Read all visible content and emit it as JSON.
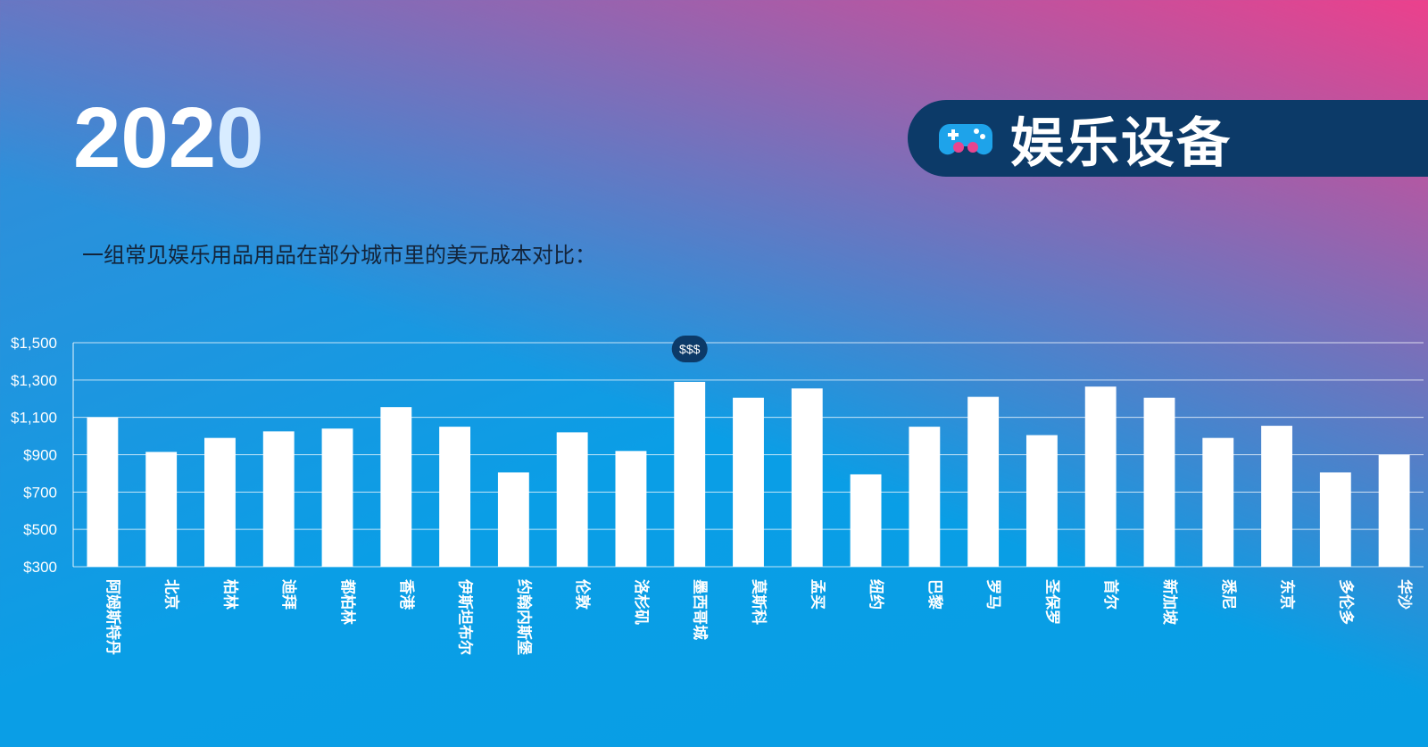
{
  "header": {
    "year_main": "202",
    "year_last": "0",
    "badge_label": "娱乐设备",
    "badge_icon": "game-controller-icon"
  },
  "subtitle": "一组常见娱乐用品用品在部分城市里的美元成本对比：",
  "colors": {
    "bar": "#ffffff",
    "badge_bg": "#0c3a68",
    "highlight_bg": "#0c3a68"
  },
  "chart_data": {
    "type": "bar",
    "categories": [
      "阿姆斯特丹",
      "北京",
      "柏林",
      "迪拜",
      "都柏林",
      "香港",
      "伊斯坦布尔",
      "约翰内斯堡",
      "伦敦",
      "洛杉矶",
      "墨西哥城",
      "莫斯科",
      "孟买",
      "纽约",
      "巴黎",
      "罗马",
      "圣保罗",
      "首尔",
      "新加坡",
      "悉尼",
      "东京",
      "多伦多",
      "华沙"
    ],
    "values": [
      1100,
      915,
      990,
      1025,
      1040,
      1155,
      1050,
      805,
      1020,
      920,
      1290,
      1205,
      1255,
      795,
      1050,
      1210,
      1005,
      1265,
      1205,
      990,
      1055,
      805,
      900
    ],
    "ylim": [
      300,
      1500
    ],
    "yticks": [
      "$300",
      "$500",
      "$700",
      "$900",
      "$1,100",
      "$1,300",
      "$1,500"
    ],
    "ytick_values": [
      300,
      500,
      700,
      900,
      1100,
      1300,
      1500
    ],
    "highlight": {
      "category": "墨西哥城",
      "label": "$$$"
    },
    "grid": true,
    "title": "",
    "xlabel": "",
    "ylabel": ""
  }
}
